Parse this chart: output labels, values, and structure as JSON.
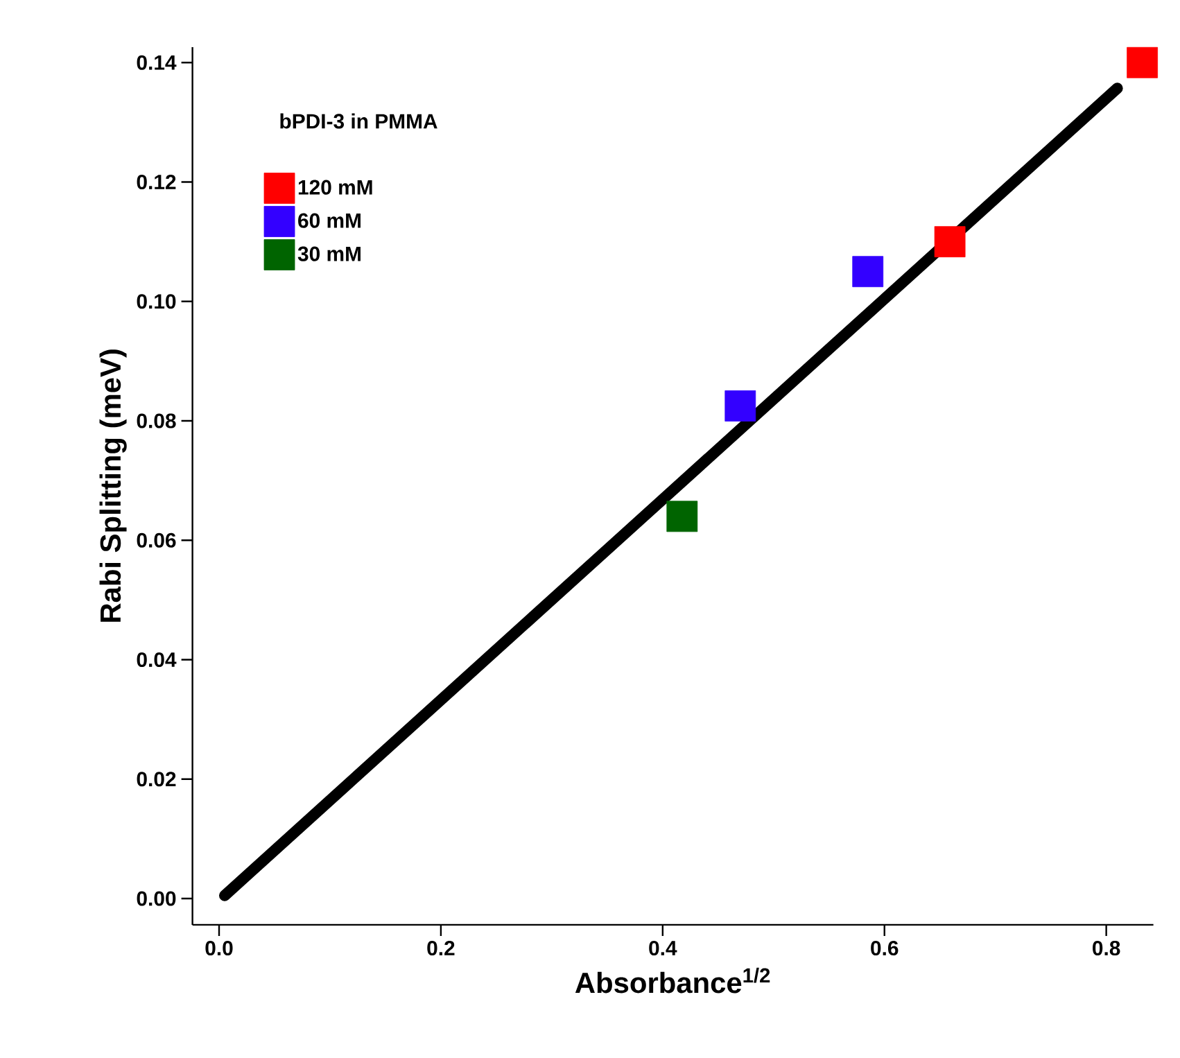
{
  "chart_data": {
    "type": "scatter",
    "xlabel": "Absorbance$^{1/2}$",
    "ylabel": "Rabi Splitting (meV)",
    "legend_title": "bPDI-3 in PMMA",
    "legend": "top left",
    "xlim": [
      -0.024,
      0.8425
    ],
    "ylim": [
      -0.0044,
      0.1426
    ],
    "xticks": [
      {
        "value": 0,
        "label": "0.0"
      },
      {
        "value": 0.2,
        "label": "0.2"
      },
      {
        "value": 0.4,
        "label": "0.4"
      },
      {
        "value": 0.6,
        "label": "0.6"
      },
      {
        "value": 0.8,
        "label": "0.8"
      }
    ],
    "yticks": [
      {
        "value": 0,
        "label": "0.00"
      },
      {
        "value": 0.02,
        "label": "0.02"
      },
      {
        "value": 0.04,
        "label": "0.04"
      },
      {
        "value": 0.06,
        "label": "0.06"
      },
      {
        "value": 0.08,
        "label": "0.08"
      },
      {
        "value": 0.1,
        "label": "0.10"
      },
      {
        "value": 0.12,
        "label": "0.12"
      },
      {
        "value": 0.14,
        "label": "0.14"
      }
    ],
    "series": [
      {
        "type": "line",
        "color": "#000000",
        "x": [
          0.005,
          0.81
        ],
        "values": [
          0.0005,
          0.1357
        ]
      },
      {
        "name": "120 mM",
        "marker": "square",
        "color": "#ff0000",
        "x": [
          0.659,
          0.8325
        ],
        "values": [
          0.11,
          0.14
        ]
      },
      {
        "name": "60 mM",
        "marker": "square",
        "color": "#3300ff",
        "x": [
          0.47,
          0.585
        ],
        "values": [
          0.0825,
          0.105
        ]
      },
      {
        "name": "30 mM",
        "marker": "square",
        "color": "#006400",
        "x": [
          0.4175
        ],
        "values": [
          0.064
        ]
      }
    ]
  }
}
